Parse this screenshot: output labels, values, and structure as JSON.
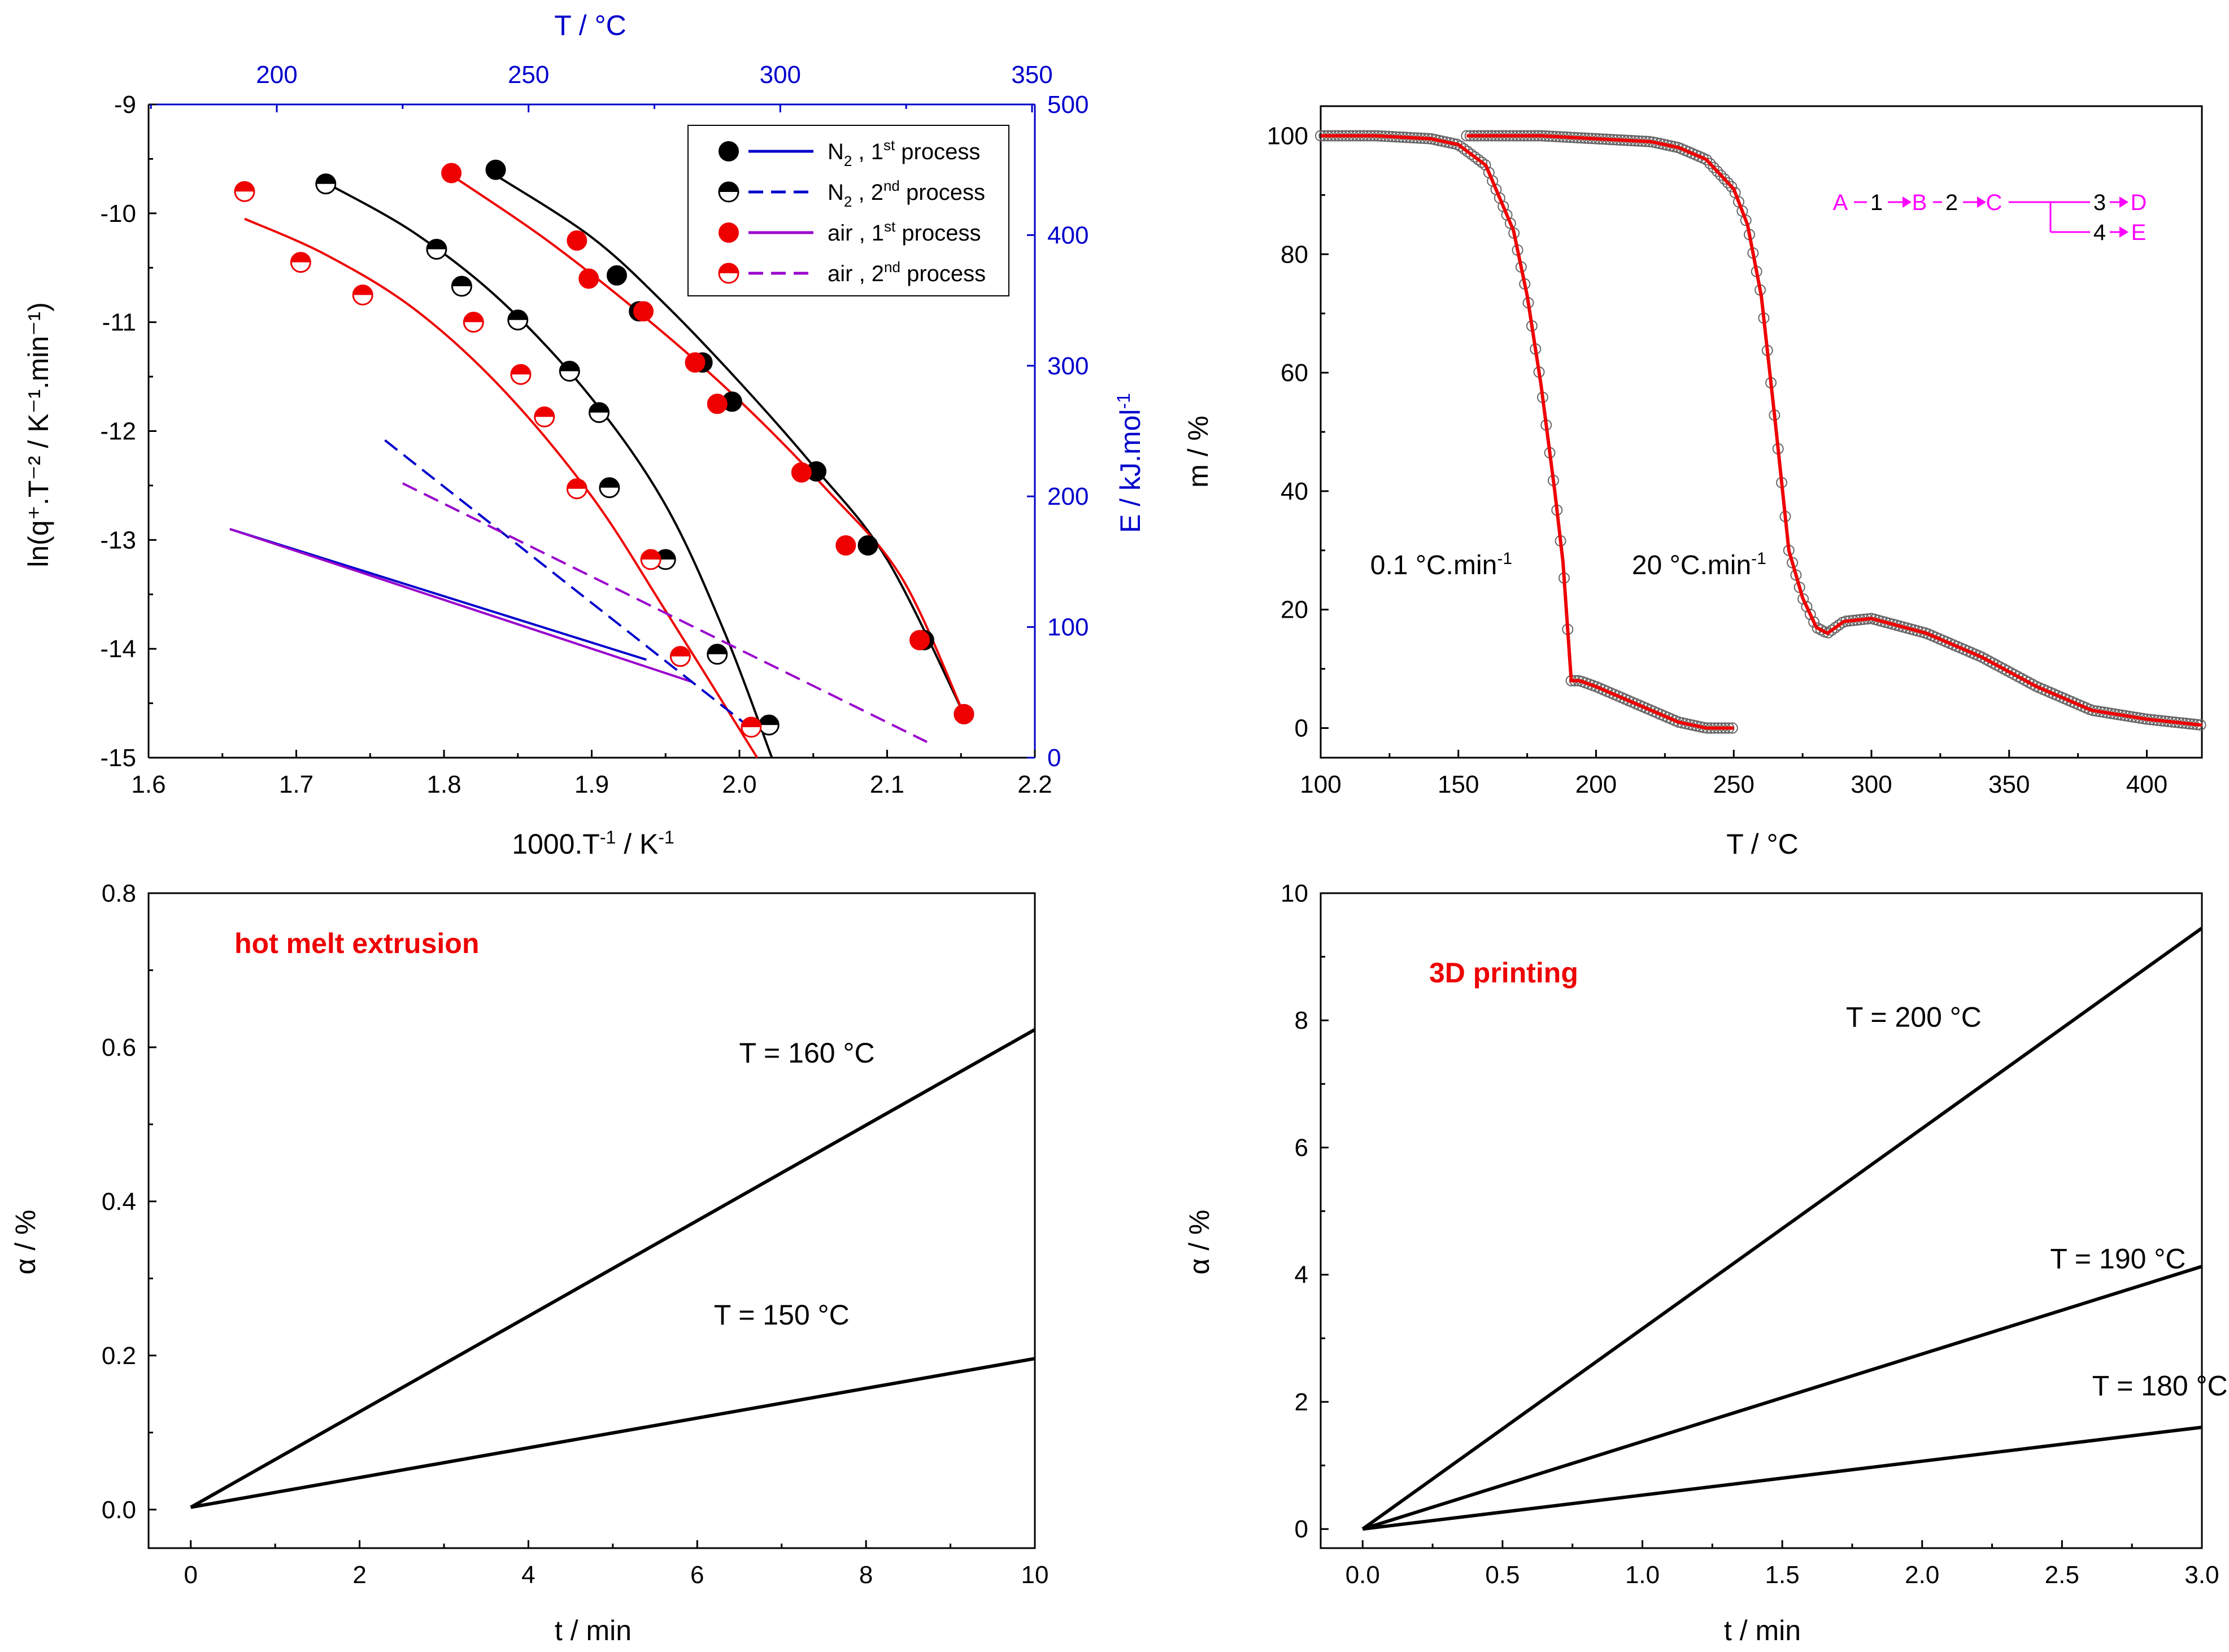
{
  "figure": {
    "aria_label": "Four-panel thermal analysis figure"
  },
  "chart_data": [
    {
      "id": "panel-a",
      "type": "scatter",
      "xlabel": "1000.T",
      "xlabel_sup": "-1",
      "xlabel_unit": "K",
      "xlabel_unit_sup": "-1",
      "ylabel": "ln(q⁺.T⁻² / K⁻¹.min⁻¹)",
      "xlim": [
        1.6,
        2.2
      ],
      "ylim": [
        -15,
        -9
      ],
      "xticks": [
        1.6,
        1.7,
        1.8,
        1.9,
        2.0,
        2.1,
        2.2
      ],
      "xtick_labels": [
        "1.6",
        "1.7",
        "1.8",
        "1.9",
        "2.0",
        "2.1",
        "2.2"
      ],
      "yticks": [
        -15,
        -14,
        -13,
        -12,
        -11,
        -10,
        -9
      ],
      "ytick_labels": [
        "-15",
        "-14",
        "-13",
        "-12",
        "-11",
        "-10",
        "-9"
      ],
      "top_axis": {
        "label": "T   /   °C",
        "ticks": [
          200,
          250,
          300,
          350
        ],
        "tick_labels": [
          "200",
          "250",
          "300",
          "350"
        ]
      },
      "right_axis": {
        "label": "E  /  kJ.mol",
        "label_sup": "-1",
        "lim": [
          0,
          500
        ],
        "ticks": [
          0,
          100,
          200,
          300,
          400,
          500
        ],
        "tick_labels": [
          "0",
          "100",
          "200",
          "300",
          "400",
          "500"
        ]
      },
      "legend": [
        {
          "label": "N",
          "sub": "2",
          "suffix": " , 1",
          "sup": "st",
          "tail": " process",
          "marker": "full-black",
          "line": "solid",
          "color": "#0000cc"
        },
        {
          "label": "N",
          "sub": "2",
          "suffix": " , 2",
          "sup": "nd",
          "tail": " process",
          "marker": "half-black",
          "line": "dashed",
          "color": "#0000cc"
        },
        {
          "label": "air",
          "sub": "",
          "suffix": " , 1",
          "sup": "st",
          "tail": " process",
          "marker": "full-red",
          "line": "solid",
          "color": "#9900cc"
        },
        {
          "label": "air",
          "sub": "",
          "suffix": " , 2",
          "sup": "nd",
          "tail": " process",
          "marker": "half-red",
          "line": "dashed",
          "color": "#9900cc"
        }
      ],
      "series": [
        {
          "name": "N2 1st process data",
          "marker": "full-black",
          "x": [
            1.835,
            1.917,
            1.932,
            1.975,
            1.995,
            2.052,
            2.087,
            2.125,
            2.152
          ],
          "y": [
            -9.6,
            -10.57,
            -10.9,
            -11.37,
            -11.73,
            -12.37,
            -13.05,
            -13.92,
            -14.6
          ]
        },
        {
          "name": "N2 1st process fit",
          "line": "solid",
          "color": "#000000",
          "x": [
            1.835,
            1.9,
            1.95,
            2.0,
            2.05,
            2.1,
            2.152
          ],
          "y": [
            -9.65,
            -10.22,
            -10.84,
            -11.55,
            -12.32,
            -13.18,
            -14.6
          ]
        },
        {
          "name": "N2 2nd process data",
          "marker": "half-black",
          "x": [
            1.72,
            1.795,
            1.812,
            1.85,
            1.885,
            1.905,
            1.912,
            1.95,
            1.985,
            2.02
          ],
          "y": [
            -9.73,
            -10.33,
            -10.67,
            -10.98,
            -11.45,
            -11.83,
            -12.52,
            -13.18,
            -14.05,
            -14.7
          ]
        },
        {
          "name": "N2 2nd process fit",
          "line": "solid",
          "color": "#000000",
          "x": [
            1.72,
            1.78,
            1.84,
            1.9,
            1.95,
            1.99,
            2.022
          ],
          "y": [
            -9.72,
            -10.18,
            -10.82,
            -11.7,
            -12.68,
            -13.85,
            -15.0
          ]
        },
        {
          "name": "air 1st process data",
          "marker": "full-red",
          "x": [
            1.805,
            1.89,
            1.898,
            1.935,
            1.97,
            1.985,
            2.042,
            2.072,
            2.122,
            2.152
          ],
          "y": [
            -9.63,
            -10.25,
            -10.6,
            -10.9,
            -11.37,
            -11.75,
            -12.38,
            -13.05,
            -13.92,
            -14.6
          ]
        },
        {
          "name": "air 1st process fit",
          "line": "solid",
          "color": "#ee0000",
          "x": [
            1.805,
            1.87,
            1.94,
            2.0,
            2.06,
            2.11,
            2.152
          ],
          "y": [
            -9.65,
            -10.25,
            -11.0,
            -11.72,
            -12.55,
            -13.35,
            -14.6
          ]
        },
        {
          "name": "air 2nd process data",
          "marker": "half-red",
          "x": [
            1.665,
            1.703,
            1.745,
            1.82,
            1.852,
            1.868,
            1.89,
            1.94,
            1.96,
            2.008
          ],
          "y": [
            -9.8,
            -10.45,
            -10.75,
            -11.0,
            -11.48,
            -11.87,
            -12.53,
            -13.18,
            -14.07,
            -14.72
          ]
        },
        {
          "name": "air 2nd process fit",
          "line": "solid",
          "color": "#ee0000",
          "x": [
            1.665,
            1.72,
            1.78,
            1.84,
            1.9,
            1.95,
            2.012
          ],
          "y": [
            -10.05,
            -10.38,
            -10.88,
            -11.62,
            -12.6,
            -13.65,
            -15.0
          ]
        },
        {
          "name": "E N2 1st process",
          "axis": "right",
          "line": "solid",
          "color": "#0000cc",
          "x": [
            1.655,
            1.937
          ],
          "y": [
            175,
            75
          ]
        },
        {
          "name": "E air 1st process",
          "axis": "right",
          "line": "solid",
          "color": "#9900cc",
          "x": [
            1.655,
            1.968
          ],
          "y": [
            175,
            58
          ]
        },
        {
          "name": "E N2 2nd process",
          "axis": "right",
          "line": "dashed",
          "color": "#0000cc",
          "x": [
            1.76,
            2.005
          ],
          "y": [
            243,
            25
          ]
        },
        {
          "name": "E air 2nd process",
          "axis": "right",
          "line": "dashed",
          "color": "#9900cc",
          "x": [
            1.772,
            2.127
          ],
          "y": [
            210,
            12
          ]
        }
      ]
    },
    {
      "id": "panel-b",
      "type": "scatter",
      "xlabel": "T   /   °C",
      "ylabel": "m   /   %",
      "xlim": [
        100,
        420
      ],
      "ylim": [
        -5,
        105
      ],
      "xticks": [
        100,
        150,
        200,
        250,
        300,
        350,
        400
      ],
      "xtick_labels": [
        "100",
        "150",
        "200",
        "250",
        "300",
        "350",
        "400"
      ],
      "yticks": [
        0,
        20,
        40,
        60,
        80,
        100
      ],
      "ytick_labels": [
        "0",
        "20",
        "40",
        "60",
        "80",
        "100"
      ],
      "annotations": [
        {
          "text": "0.1 °C.min",
          "sup": "-1",
          "x": 118,
          "y": 26
        },
        {
          "text": "20 °C.min",
          "sup": "-1",
          "x": 213,
          "y": 26
        }
      ],
      "scheme": {
        "nodes": [
          "A",
          "B",
          "C",
          "D",
          "E"
        ],
        "steps": [
          "1",
          "2",
          "3",
          "4"
        ]
      },
      "series": [
        {
          "name": "0.1 °C/min",
          "x": [
            100,
            120,
            140,
            150,
            160,
            170,
            175,
            180,
            185,
            188,
            191,
            194,
            200,
            210,
            220,
            230,
            240,
            250
          ],
          "y": [
            100,
            100,
            99.5,
            98.5,
            95,
            84,
            73,
            58,
            40,
            28,
            8,
            8,
            7,
            5,
            3,
            1,
            0,
            0
          ]
        },
        {
          "name": "20 °C/min",
          "x": [
            153,
            180,
            200,
            220,
            230,
            240,
            250,
            255,
            260,
            265,
            270,
            275,
            280,
            284,
            290,
            300,
            320,
            340,
            360,
            380,
            400,
            420
          ],
          "y": [
            100,
            100,
            99.5,
            99,
            98,
            96,
            91,
            85,
            73,
            52,
            30,
            22,
            17,
            16,
            18,
            18.5,
            16,
            12,
            7,
            3,
            1.5,
            0.5
          ]
        }
      ]
    },
    {
      "id": "panel-c",
      "type": "line",
      "title": "hot melt extrusion",
      "xlabel": "t   /   min",
      "ylabel": "α   /   %",
      "xlim": [
        -0.5,
        10
      ],
      "ylim": [
        -0.05,
        0.8
      ],
      "xticks": [
        0,
        2,
        4,
        6,
        8,
        10
      ],
      "xtick_labels": [
        "0",
        "2",
        "4",
        "6",
        "8",
        "10"
      ],
      "yticks": [
        0.0,
        0.2,
        0.4,
        0.6,
        0.8
      ],
      "ytick_labels": [
        "0.0",
        "0.2",
        "0.4",
        "0.6",
        "0.8"
      ],
      "series": [
        {
          "name": "T = 160 °C",
          "x": [
            0,
            10
          ],
          "y": [
            0.003,
            0.623
          ],
          "label_at": [
            7.3,
            0.58
          ]
        },
        {
          "name": "T = 150 °C",
          "x": [
            0,
            10
          ],
          "y": [
            0.003,
            0.196
          ],
          "label_at": [
            7.0,
            0.24
          ]
        }
      ]
    },
    {
      "id": "panel-d",
      "type": "line",
      "title": "3D printing",
      "xlabel": "t   /   min",
      "ylabel": "α   /   %",
      "xlim": [
        -0.15,
        3.0
      ],
      "ylim": [
        -0.3,
        10
      ],
      "xticks": [
        0.0,
        0.5,
        1.0,
        1.5,
        2.0,
        2.5,
        3.0
      ],
      "xtick_labels": [
        "0.0",
        "0.5",
        "1.0",
        "1.5",
        "2.0",
        "2.5",
        "3.0"
      ],
      "yticks": [
        0,
        2,
        4,
        6,
        8,
        10
      ],
      "ytick_labels": [
        "0",
        "2",
        "4",
        "6",
        "8",
        "10"
      ],
      "series": [
        {
          "name": "T = 200 °C",
          "x": [
            0,
            3.0
          ],
          "y": [
            0,
            9.45
          ],
          "label_at": [
            1.97,
            7.9
          ]
        },
        {
          "name": "T = 190 °C",
          "x": [
            0,
            3.0
          ],
          "y": [
            0,
            4.13
          ],
          "label_at": [
            2.7,
            4.1
          ]
        },
        {
          "name": "T = 180 °C",
          "x": [
            0,
            3.0
          ],
          "y": [
            0,
            1.6
          ],
          "label_at": [
            2.85,
            2.1
          ]
        }
      ]
    }
  ]
}
